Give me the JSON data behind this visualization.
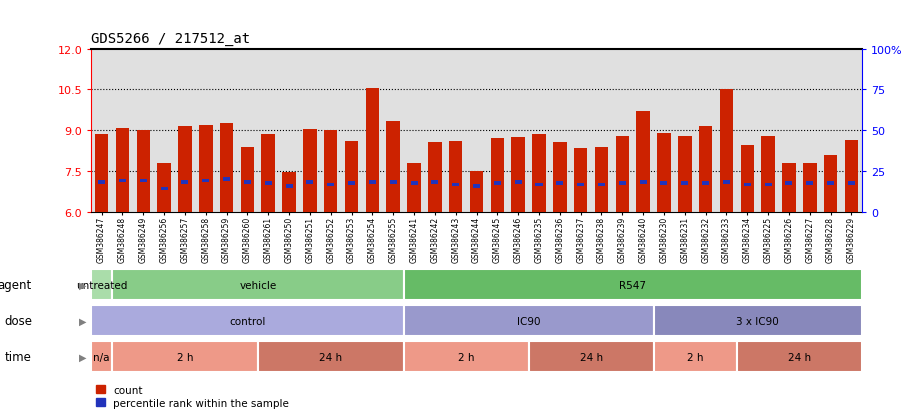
{
  "title": "GDS5266 / 217512_at",
  "ylim_left": [
    6,
    12
  ],
  "ylim_right": [
    0,
    100
  ],
  "yticks_left": [
    6,
    7.5,
    9,
    10.5,
    12
  ],
  "yticks_right": [
    0,
    25,
    50,
    75,
    100
  ],
  "bar_color": "#cc2200",
  "blue_color": "#2233bb",
  "bg_color": "#e0e0e0",
  "categories": [
    "GSM386247",
    "GSM386248",
    "GSM386249",
    "GSM386256",
    "GSM386257",
    "GSM386258",
    "GSM386259",
    "GSM386260",
    "GSM386261",
    "GSM386250",
    "GSM386251",
    "GSM386252",
    "GSM386253",
    "GSM386254",
    "GSM386255",
    "GSM386241",
    "GSM386242",
    "GSM386243",
    "GSM386244",
    "GSM386245",
    "GSM386246",
    "GSM386235",
    "GSM386236",
    "GSM386237",
    "GSM386238",
    "GSM386239",
    "GSM386240",
    "GSM386230",
    "GSM386231",
    "GSM386232",
    "GSM386233",
    "GSM386234",
    "GSM386225",
    "GSM386226",
    "GSM386227",
    "GSM386228",
    "GSM386229"
  ],
  "bar_heights": [
    8.85,
    9.1,
    9.0,
    7.8,
    9.15,
    9.2,
    9.25,
    8.4,
    8.85,
    7.45,
    9.05,
    9.0,
    8.6,
    10.55,
    9.35,
    7.8,
    8.55,
    8.6,
    7.5,
    8.7,
    8.75,
    8.85,
    8.55,
    8.35,
    8.4,
    8.8,
    9.7,
    8.9,
    8.8,
    9.15,
    10.5,
    8.45,
    8.8,
    7.8,
    7.8,
    8.1,
    8.65
  ],
  "blue_heights": [
    7.1,
    7.15,
    7.15,
    6.85,
    7.1,
    7.15,
    7.2,
    7.1,
    7.05,
    6.95,
    7.1,
    7.0,
    7.05,
    7.1,
    7.1,
    7.05,
    7.1,
    7.0,
    6.95,
    7.05,
    7.1,
    7.0,
    7.05,
    7.0,
    7.0,
    7.05,
    7.1,
    7.05,
    7.05,
    7.05,
    7.1,
    7.0,
    7.0,
    7.05,
    7.05,
    7.05,
    7.05
  ],
  "agent_groups": [
    {
      "label": "untreated",
      "start": 0,
      "end": 1,
      "color": "#aaddaa"
    },
    {
      "label": "vehicle",
      "start": 1,
      "end": 15,
      "color": "#88cc88"
    },
    {
      "label": "R547",
      "start": 15,
      "end": 37,
      "color": "#66bb66"
    }
  ],
  "dose_groups": [
    {
      "label": "control",
      "start": 0,
      "end": 15,
      "color": "#aaaadd"
    },
    {
      "label": "IC90",
      "start": 15,
      "end": 27,
      "color": "#9999cc"
    },
    {
      "label": "3 x IC90",
      "start": 27,
      "end": 37,
      "color": "#8888bb"
    }
  ],
  "time_groups": [
    {
      "label": "n/a",
      "start": 0,
      "end": 1,
      "color": "#ee9988"
    },
    {
      "label": "2 h",
      "start": 1,
      "end": 8,
      "color": "#ee9988"
    },
    {
      "label": "24 h",
      "start": 8,
      "end": 15,
      "color": "#cc7766"
    },
    {
      "label": "2 h",
      "start": 15,
      "end": 21,
      "color": "#ee9988"
    },
    {
      "label": "24 h",
      "start": 21,
      "end": 27,
      "color": "#cc7766"
    },
    {
      "label": "2 h",
      "start": 27,
      "end": 31,
      "color": "#ee9988"
    },
    {
      "label": "24 h",
      "start": 31,
      "end": 37,
      "color": "#cc7766"
    }
  ],
  "row_labels": [
    "agent",
    "dose",
    "time"
  ],
  "legend_items": [
    {
      "color": "#cc2200",
      "label": "count"
    },
    {
      "color": "#2233bb",
      "label": "percentile rank within the sample"
    }
  ],
  "grid_lines": [
    7.5,
    9.0,
    10.5
  ]
}
